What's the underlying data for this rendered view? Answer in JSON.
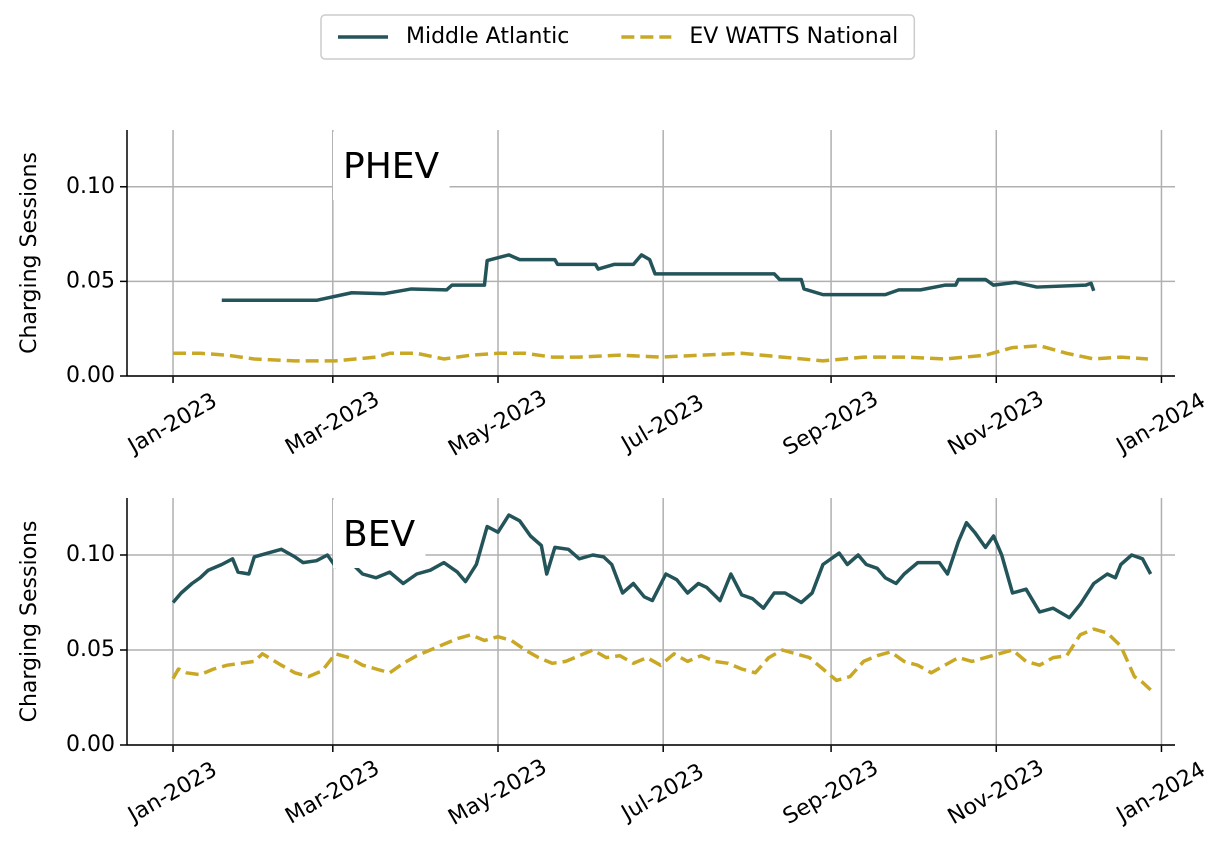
{
  "chart_data": [
    {
      "type": "line",
      "title": "PHEV",
      "ylabel": "Charging Sessions",
      "legend": "top",
      "grid": true,
      "xlim": [
        -17,
        370
      ],
      "ylim": [
        0,
        0.13
      ],
      "xticks": [
        {
          "value": 0,
          "label": "Jan-2023"
        },
        {
          "value": 59,
          "label": "Mar-2023"
        },
        {
          "value": 120,
          "label": "May-2023"
        },
        {
          "value": 181,
          "label": "Jul-2023"
        },
        {
          "value": 243,
          "label": "Sep-2023"
        },
        {
          "value": 304,
          "label": "Nov-2023"
        },
        {
          "value": 365,
          "label": "Jan-2024"
        }
      ],
      "yticks": [
        {
          "value": 0,
          "label": "0.00"
        },
        {
          "value": 0.05,
          "label": "0.05"
        },
        {
          "value": 0.1,
          "label": "0.10"
        }
      ],
      "series": [
        {
          "name": "Middle Atlantic",
          "color": "#235459",
          "linestyle": "solid",
          "x": [
            18,
            53,
            66,
            78,
            88,
            101,
            103,
            115,
            116,
            124,
            128,
            141,
            142,
            156,
            157,
            163,
            170,
            173,
            176,
            178,
            222,
            224,
            232,
            233,
            240,
            263,
            268,
            276,
            285,
            289,
            290,
            300,
            303,
            311,
            319,
            337,
            339,
            340
          ],
          "values": [
            0.04,
            0.04,
            0.044,
            0.0435,
            0.046,
            0.0455,
            0.048,
            0.048,
            0.061,
            0.064,
            0.0615,
            0.0615,
            0.059,
            0.059,
            0.0565,
            0.059,
            0.059,
            0.064,
            0.0615,
            0.054,
            0.054,
            0.051,
            0.051,
            0.046,
            0.043,
            0.043,
            0.0455,
            0.0455,
            0.048,
            0.048,
            0.051,
            0.051,
            0.048,
            0.0495,
            0.047,
            0.048,
            0.049,
            0.045
          ]
        },
        {
          "name": "EV WATTS National",
          "color": "#c9a826",
          "linestyle": "dashed",
          "x": [
            0,
            10,
            20,
            30,
            45,
            60,
            75,
            80,
            90,
            100,
            110,
            120,
            130,
            140,
            150,
            165,
            180,
            195,
            210,
            225,
            240,
            255,
            270,
            285,
            300,
            310,
            320,
            330,
            340,
            350,
            360
          ],
          "values": [
            0.012,
            0.012,
            0.011,
            0.009,
            0.008,
            0.008,
            0.01,
            0.012,
            0.012,
            0.009,
            0.011,
            0.012,
            0.012,
            0.01,
            0.01,
            0.011,
            0.01,
            0.011,
            0.012,
            0.01,
            0.008,
            0.01,
            0.01,
            0.009,
            0.011,
            0.015,
            0.016,
            0.012,
            0.009,
            0.01,
            0.009
          ]
        }
      ]
    },
    {
      "type": "line",
      "title": "BEV",
      "ylabel": "Charging Sessions",
      "grid": true,
      "xlim": [
        -17,
        370
      ],
      "ylim": [
        0,
        0.13
      ],
      "xticks": [
        {
          "value": 0,
          "label": "Jan-2023"
        },
        {
          "value": 59,
          "label": "Mar-2023"
        },
        {
          "value": 120,
          "label": "May-2023"
        },
        {
          "value": 181,
          "label": "Jul-2023"
        },
        {
          "value": 243,
          "label": "Sep-2023"
        },
        {
          "value": 304,
          "label": "Nov-2023"
        },
        {
          "value": 365,
          "label": "Jan-2024"
        }
      ],
      "yticks": [
        {
          "value": 0,
          "label": "0.00"
        },
        {
          "value": 0.05,
          "label": "0.05"
        },
        {
          "value": 0.1,
          "label": "0.10"
        }
      ],
      "series": [
        {
          "name": "Middle Atlantic",
          "color": "#235459",
          "linestyle": "solid",
          "x": [
            0,
            3,
            7,
            10,
            13,
            18,
            22,
            24,
            28,
            30,
            35,
            40,
            45,
            48,
            53,
            57,
            60,
            63,
            65,
            70,
            75,
            80,
            85,
            90,
            95,
            100,
            105,
            108,
            112,
            116,
            120,
            124,
            128,
            132,
            136,
            138,
            141,
            146,
            150,
            155,
            159,
            162,
            166,
            170,
            174,
            177,
            182,
            186,
            190,
            194,
            197,
            202,
            206,
            210,
            214,
            218,
            222,
            226,
            232,
            236,
            240,
            246,
            249,
            253,
            256,
            260,
            263,
            267,
            270,
            275,
            283,
            286,
            290,
            293,
            296,
            300,
            303,
            306,
            310,
            315,
            320,
            325,
            331,
            335,
            340,
            345,
            348,
            350,
            354,
            358,
            361
          ],
          "values": [
            0.075,
            0.08,
            0.085,
            0.088,
            0.092,
            0.095,
            0.098,
            0.091,
            0.09,
            0.099,
            0.101,
            0.103,
            0.099,
            0.096,
            0.097,
            0.1,
            0.094,
            0.096,
            0.097,
            0.09,
            0.088,
            0.091,
            0.085,
            0.09,
            0.092,
            0.096,
            0.091,
            0.086,
            0.095,
            0.115,
            0.112,
            0.121,
            0.118,
            0.11,
            0.105,
            0.09,
            0.104,
            0.103,
            0.098,
            0.1,
            0.099,
            0.095,
            0.08,
            0.085,
            0.078,
            0.076,
            0.09,
            0.087,
            0.08,
            0.085,
            0.083,
            0.076,
            0.09,
            0.079,
            0.077,
            0.072,
            0.08,
            0.08,
            0.075,
            0.08,
            0.095,
            0.101,
            0.095,
            0.1,
            0.095,
            0.093,
            0.088,
            0.085,
            0.09,
            0.096,
            0.096,
            0.09,
            0.107,
            0.117,
            0.112,
            0.104,
            0.11,
            0.1,
            0.08,
            0.082,
            0.07,
            0.072,
            0.067,
            0.074,
            0.085,
            0.09,
            0.088,
            0.095,
            0.1,
            0.098,
            0.09
          ]
        },
        {
          "name": "EV WATTS National",
          "color": "#c9a826",
          "linestyle": "dashed",
          "x": [
            0,
            2,
            5,
            10,
            15,
            20,
            25,
            30,
            33,
            40,
            45,
            50,
            55,
            60,
            65,
            70,
            75,
            80,
            85,
            90,
            95,
            100,
            105,
            110,
            115,
            120,
            125,
            130,
            135,
            140,
            145,
            150,
            155,
            160,
            165,
            170,
            175,
            180,
            185,
            190,
            195,
            200,
            205,
            210,
            215,
            220,
            225,
            230,
            235,
            240,
            245,
            250,
            255,
            260,
            265,
            270,
            275,
            280,
            285,
            290,
            295,
            300,
            305,
            310,
            315,
            320,
            325,
            330,
            335,
            340,
            345,
            350,
            355,
            358,
            361
          ],
          "values": [
            0.035,
            0.04,
            0.038,
            0.037,
            0.04,
            0.042,
            0.043,
            0.044,
            0.048,
            0.042,
            0.038,
            0.036,
            0.039,
            0.048,
            0.046,
            0.042,
            0.04,
            0.038,
            0.043,
            0.047,
            0.05,
            0.053,
            0.056,
            0.058,
            0.055,
            0.057,
            0.055,
            0.05,
            0.046,
            0.043,
            0.044,
            0.047,
            0.05,
            0.046,
            0.047,
            0.043,
            0.046,
            0.042,
            0.048,
            0.044,
            0.047,
            0.044,
            0.043,
            0.04,
            0.038,
            0.046,
            0.05,
            0.048,
            0.046,
            0.04,
            0.034,
            0.036,
            0.044,
            0.047,
            0.049,
            0.044,
            0.042,
            0.038,
            0.042,
            0.046,
            0.044,
            0.046,
            0.048,
            0.05,
            0.044,
            0.042,
            0.046,
            0.047,
            0.058,
            0.061,
            0.059,
            0.052,
            0.036,
            0.033,
            0.029
          ]
        }
      ]
    }
  ]
}
